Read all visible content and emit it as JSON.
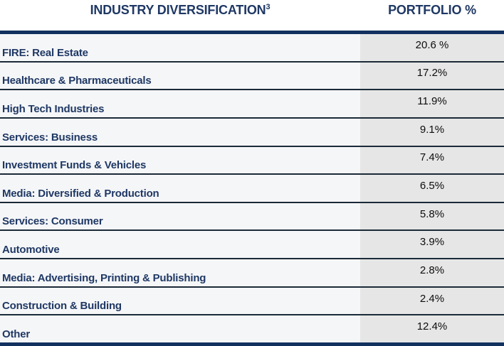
{
  "table": {
    "header": {
      "industry_label": "INDUSTRY DIVERSIFICATION",
      "industry_superscript": "3",
      "portfolio_label": "PORTFOLIO %"
    },
    "rows": [
      {
        "industry": "FIRE: Real Estate",
        "portfolio": "20.6 %"
      },
      {
        "industry": "Healthcare & Pharmaceuticals",
        "portfolio": "17.2%"
      },
      {
        "industry": "High Tech Industries",
        "portfolio": "11.9%"
      },
      {
        "industry": "Services: Business",
        "portfolio": "9.1%"
      },
      {
        "industry": "Investment Funds & Vehicles",
        "portfolio": "7.4%"
      },
      {
        "industry": "Media: Diversified & Production",
        "portfolio": "6.5%"
      },
      {
        "industry": "Services: Consumer",
        "portfolio": "5.8%"
      },
      {
        "industry": "Automotive",
        "portfolio": "3.9%"
      },
      {
        "industry": "Media: Advertising, Printing & Publishing",
        "portfolio": "2.8%"
      },
      {
        "industry": "Construction & Building",
        "portfolio": "2.4%"
      },
      {
        "industry": "Other",
        "portfolio": "12.4%"
      }
    ],
    "colors": {
      "navy_text": "#1F3864",
      "navy_bar": "#12315F",
      "separator": "#1B2A38",
      "label_column_bg": "#F5F6F8",
      "value_column_bg": "#E6E6E6",
      "value_text": "#0D0D0D"
    }
  },
  "chart_data": {
    "type": "table",
    "title": "INDUSTRY DIVERSIFICATION³",
    "columns": [
      "INDUSTRY DIVERSIFICATION³",
      "PORTFOLIO %"
    ],
    "categories": [
      "FIRE: Real Estate",
      "Healthcare & Pharmaceuticals",
      "High Tech Industries",
      "Services: Business",
      "Investment Funds & Vehicles",
      "Media: Diversified & Production",
      "Services: Consumer",
      "Automotive",
      "Media: Advertising, Printing & Publishing",
      "Construction & Building",
      "Other"
    ],
    "values": [
      20.6,
      17.2,
      11.9,
      9.1,
      7.4,
      6.5,
      5.8,
      3.9,
      2.8,
      2.4,
      12.4
    ],
    "unit": "%"
  }
}
